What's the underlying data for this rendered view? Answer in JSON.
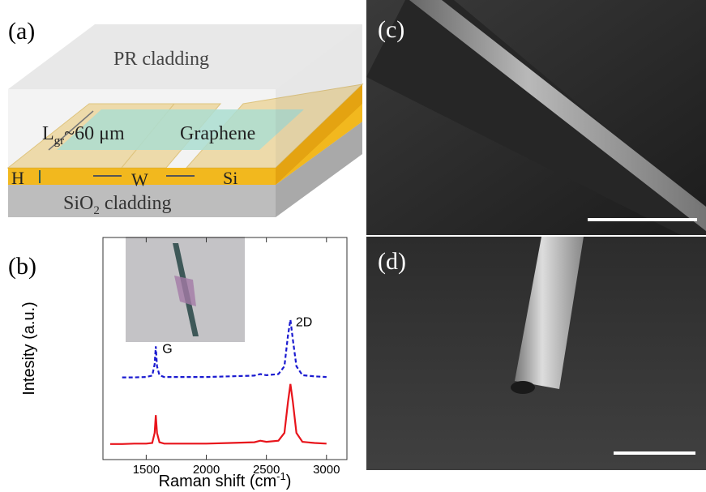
{
  "panel_a": {
    "label": "(a)",
    "cladding_top": "PR cladding",
    "length_main": "L",
    "length_sub": "gr",
    "length_value": "~60 μm",
    "graphene": "Graphene",
    "height": "H",
    "width": "W",
    "silicon": "Si",
    "cladding_bottom_main": "SiO",
    "cladding_bottom_sub": "2",
    "cladding_bottom_tail": " cladding"
  },
  "panel_b": {
    "label": "(b)"
  },
  "panel_c": {
    "label": "(c)"
  },
  "panel_d": {
    "label": "(d)"
  },
  "chart_data": {
    "type": "line",
    "x_label": [
      "Raman shift (cm",
      "-1",
      ")"
    ],
    "y_label": "Intesity (a.u.)",
    "annotations": [
      {
        "text": "G",
        "x": 1580,
        "y": 5.1
      },
      {
        "text": "2D",
        "x": 2690,
        "y": 6.3
      }
    ],
    "x": [
      1200,
      1300,
      1400,
      1500,
      1550,
      1570,
      1580,
      1590,
      1610,
      1650,
      1800,
      2000,
      2200,
      2400,
      2450,
      2500,
      2600,
      2650,
      2680,
      2700,
      2720,
      2750,
      2800,
      2900,
      3000
    ],
    "series": [
      {
        "color": "#e8141b",
        "dash": false,
        "values": [
          0.7,
          0.7,
          0.72,
          0.72,
          0.75,
          1.2,
          2.0,
          1.2,
          0.78,
          0.72,
          0.72,
          0.72,
          0.75,
          0.78,
          0.85,
          0.8,
          0.85,
          1.2,
          2.6,
          3.4,
          2.6,
          1.2,
          0.8,
          0.75,
          0.72
        ]
      },
      {
        "color": "#1a1ad0",
        "dash": true,
        "values": [
          null,
          3.7,
          3.7,
          3.72,
          3.78,
          4.3,
          5.1,
          4.2,
          3.8,
          3.72,
          3.72,
          3.72,
          3.75,
          3.78,
          3.85,
          3.8,
          3.85,
          4.2,
          5.6,
          6.3,
          5.4,
          4.2,
          3.8,
          3.75,
          3.72
        ]
      }
    ],
    "xlim": [
      1140,
      3170
    ],
    "xticks": [
      1500,
      2000,
      2500,
      3000
    ],
    "ylim": [
      0,
      10
    ]
  }
}
